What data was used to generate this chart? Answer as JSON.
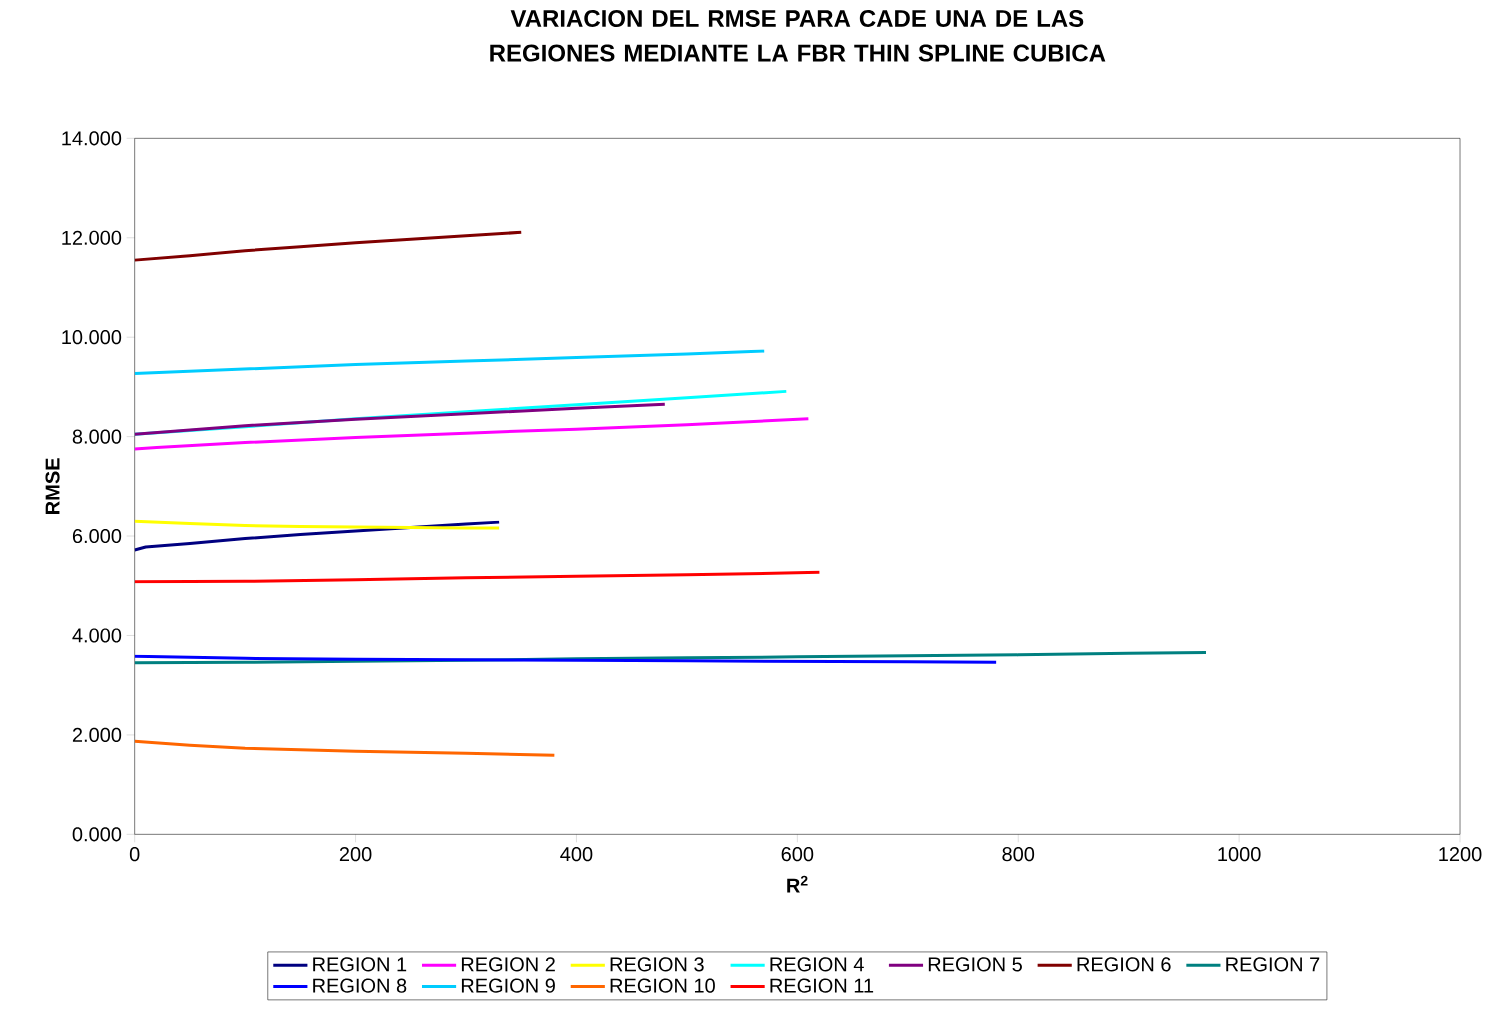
{
  "chart_data": {
    "type": "line",
    "title": "VARIACION DEL RMSE PARA CADE UNA DE LAS REGIONES MEDIANTE LA FBR THIN SPLINE CUBICA",
    "xlabel": "R$^{2}$",
    "ylabel": "RMSE",
    "xlim": [
      0,
      1200
    ],
    "xticks": [
      0,
      200,
      400,
      600,
      800,
      1000,
      1200
    ],
    "ylim": [
      0,
      14
    ],
    "yticks": [
      {
        "value": 0,
        "label": "0.000"
      },
      {
        "value": 2,
        "label": "2.000"
      },
      {
        "value": 4,
        "label": "4.000"
      },
      {
        "value": 6,
        "label": "6.000"
      },
      {
        "value": 8,
        "label": "8.000"
      },
      {
        "value": 10,
        "label": "10.000"
      },
      {
        "value": 12,
        "label": "12.000"
      },
      {
        "value": 14,
        "label": "14.000"
      }
    ],
    "grid": false,
    "legend": "bottom",
    "marker": "none",
    "line_style": "solid",
    "series": [
      {
        "name": "REGION 1",
        "color": "#000080",
        "x": [
          0,
          10,
          50,
          100,
          150,
          200,
          250,
          300,
          330
        ],
        "values": [
          5.72,
          5.78,
          5.85,
          5.95,
          6.03,
          6.1,
          6.17,
          6.24,
          6.28
        ]
      },
      {
        "name": "REGION 2",
        "color": "#ff00ff",
        "x": [
          0,
          20,
          100,
          200,
          300,
          400,
          500,
          610
        ],
        "values": [
          7.75,
          7.78,
          7.88,
          7.98,
          8.07,
          8.15,
          8.24,
          8.36
        ]
      },
      {
        "name": "REGION 3",
        "color": "#ffff00",
        "x": [
          0,
          50,
          100,
          150,
          200,
          250,
          300,
          330
        ],
        "values": [
          6.3,
          6.25,
          6.21,
          6.19,
          6.18,
          6.17,
          6.16,
          6.16
        ]
      },
      {
        "name": "REGION 4",
        "color": "#00ffff",
        "x": [
          0,
          100,
          200,
          300,
          400,
          500,
          590
        ],
        "values": [
          8.05,
          8.2,
          8.36,
          8.5,
          8.64,
          8.78,
          8.91
        ]
      },
      {
        "name": "REGION 5",
        "color": "#800080",
        "x": [
          0,
          100,
          200,
          300,
          400,
          480
        ],
        "values": [
          8.05,
          8.22,
          8.35,
          8.46,
          8.57,
          8.65
        ]
      },
      {
        "name": "REGION 6",
        "color": "#800000",
        "x": [
          0,
          50,
          100,
          150,
          200,
          250,
          300,
          350
        ],
        "values": [
          11.55,
          11.64,
          11.74,
          11.82,
          11.9,
          11.97,
          12.04,
          12.11
        ]
      },
      {
        "name": "REGION 7",
        "color": "#008080",
        "x": [
          0,
          100,
          200,
          300,
          400,
          500,
          600,
          700,
          800,
          900,
          970
        ],
        "values": [
          3.45,
          3.46,
          3.48,
          3.5,
          3.53,
          3.55,
          3.57,
          3.59,
          3.61,
          3.64,
          3.66
        ]
      },
      {
        "name": "REGION 8",
        "color": "#0000ff",
        "x": [
          0,
          100,
          200,
          300,
          400,
          500,
          600,
          700,
          780
        ],
        "values": [
          3.58,
          3.54,
          3.52,
          3.51,
          3.5,
          3.49,
          3.48,
          3.47,
          3.46
        ]
      },
      {
        "name": "REGION 9",
        "color": "#00ccff",
        "x": [
          0,
          100,
          200,
          300,
          400,
          500,
          570
        ],
        "values": [
          9.27,
          9.36,
          9.45,
          9.52,
          9.59,
          9.66,
          9.72
        ]
      },
      {
        "name": "REGION 10",
        "color": "#ff6600",
        "x": [
          0,
          50,
          100,
          150,
          200,
          250,
          300,
          380
        ],
        "values": [
          1.87,
          1.79,
          1.73,
          1.7,
          1.67,
          1.65,
          1.63,
          1.59
        ]
      },
      {
        "name": "REGION 11",
        "color": "#ff0000",
        "x": [
          0,
          100,
          200,
          300,
          400,
          500,
          620
        ],
        "values": [
          5.08,
          5.09,
          5.12,
          5.16,
          5.19,
          5.22,
          5.27
        ]
      }
    ]
  }
}
